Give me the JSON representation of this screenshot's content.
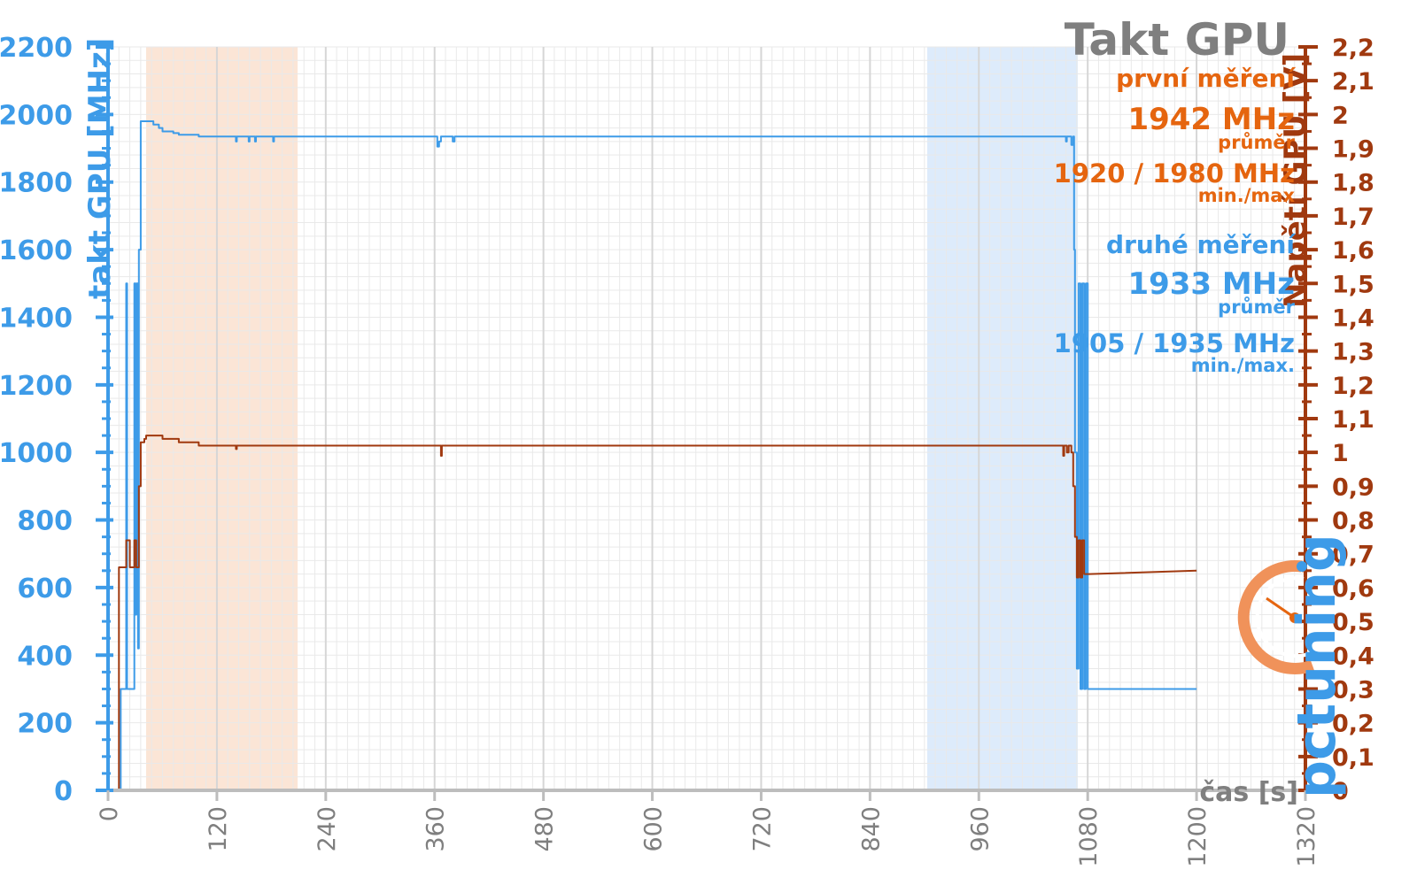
{
  "chart_data": {
    "type": "line",
    "title": "Takt GPU",
    "xlabel": "čas [s]",
    "ylabel_left": "takt GPU [MHz]",
    "ylabel_right": "Napětí GPU [V]",
    "xlim": [
      0,
      1320
    ],
    "ylim_left": [
      0,
      2200
    ],
    "ylim_right": [
      0,
      2.2
    ],
    "x_ticks": [
      "0",
      "120",
      "240",
      "360",
      "480",
      "600",
      "720",
      "840",
      "960",
      "1080",
      "1200",
      "1320"
    ],
    "y_left_ticks": [
      "0",
      "200",
      "400",
      "600",
      "800",
      "1000",
      "1200",
      "1400",
      "1600",
      "1800",
      "2000",
      "2200"
    ],
    "y_right_ticks": [
      "0",
      "0,1",
      "0,2",
      "0,3",
      "0,4",
      "0,5",
      "0,6",
      "0,7",
      "0,8",
      "0,9",
      "1",
      "1,1",
      "1,2",
      "1,3",
      "1,4",
      "1,5",
      "1,6",
      "1,7",
      "1,8",
      "1,9",
      "2",
      "2,1",
      "2,2"
    ],
    "grid": true,
    "highlight_ranges": [
      {
        "x": [
          42,
          209
        ],
        "color": "#fbe5d6"
      },
      {
        "x": [
          903,
          1069
        ],
        "color": "#ddebfb"
      }
    ],
    "series": [
      {
        "axis": "left",
        "color": "#3d9be8",
        "x": [
          2,
          14,
          14,
          20,
          20,
          21,
          21,
          24,
          24,
          29,
          29,
          30,
          30,
          31,
          31,
          33,
          33,
          34,
          34,
          36,
          36,
          38,
          38,
          50,
          50,
          56,
          56,
          60,
          60,
          72,
          72,
          78,
          78,
          100,
          100,
          141,
          141,
          142,
          142,
          155,
          155,
          156,
          156,
          162,
          162,
          163,
          163,
          182,
          182,
          183,
          183,
          363,
          363,
          365,
          365,
          367,
          367,
          380,
          380,
          382,
          382,
          1056,
          1056,
          1057,
          1057,
          1062,
          1062,
          1064,
          1064,
          1065,
          1065,
          1066,
          1066,
          1068,
          1068,
          1070,
          1070,
          1072,
          1072,
          1074,
          1074,
          1076,
          1076,
          1078,
          1078,
          1080,
          1080,
          1082,
          1082,
          1200
        ],
        "y": [
          0,
          0,
          300,
          300,
          1500,
          1500,
          300,
          300,
          300,
          300,
          1500,
          1500,
          520,
          520,
          1500,
          1500,
          420,
          420,
          1600,
          1600,
          1980,
          1980,
          1980,
          1980,
          1970,
          1970,
          1960,
          1960,
          1950,
          1950,
          1945,
          1945,
          1940,
          1940,
          1935,
          1935,
          1920,
          1920,
          1935,
          1935,
          1920,
          1920,
          1935,
          1935,
          1920,
          1920,
          1935,
          1935,
          1920,
          1920,
          1935,
          1935,
          1905,
          1905,
          1920,
          1920,
          1935,
          1935,
          1920,
          1920,
          1935,
          1935,
          1920,
          1920,
          1935,
          1935,
          1910,
          1910,
          1935,
          1935,
          1600,
          1600,
          1000,
          1000,
          360,
          360,
          1500,
          1500,
          300,
          300,
          1500,
          1500,
          300,
          300,
          1500,
          1500,
          300,
          300,
          300,
          300
        ]
      },
      {
        "axis": "right",
        "color": "#a0390f",
        "x": [
          0,
          12,
          12,
          14,
          14,
          20,
          20,
          24,
          24,
          29,
          29,
          31,
          31,
          34,
          34,
          36,
          36,
          40,
          40,
          42,
          42,
          60,
          60,
          78,
          78,
          100,
          100,
          141,
          141,
          142,
          142,
          367,
          367,
          368,
          368,
          1053,
          1053,
          1054,
          1054,
          1057,
          1057,
          1059,
          1059,
          1062,
          1062,
          1064,
          1064,
          1066,
          1066,
          1068,
          1068,
          1070,
          1070,
          1072,
          1072,
          1074,
          1074,
          1076,
          1076,
          1078,
          1078,
          1080,
          1080,
          1082,
          1082,
          1200
        ],
        "y": [
          0,
          0,
          0.66,
          0.66,
          0.66,
          0.66,
          0.74,
          0.74,
          0.66,
          0.66,
          0.74,
          0.74,
          0.66,
          0.66,
          0.9,
          0.9,
          1.03,
          1.03,
          1.04,
          1.04,
          1.05,
          1.05,
          1.04,
          1.04,
          1.03,
          1.03,
          1.02,
          1.02,
          1.01,
          1.01,
          1.02,
          1.02,
          0.99,
          0.99,
          1.02,
          1.02,
          0.99,
          0.99,
          1.02,
          1.02,
          1.0,
          1.0,
          1.02,
          1.02,
          1.0,
          1.0,
          0.9,
          0.9,
          0.75,
          0.75,
          0.63,
          0.63,
          0.74,
          0.74,
          0.63,
          0.63,
          0.74,
          0.74,
          0.64,
          0.64,
          0.64,
          0.64,
          0.64,
          0.64,
          0.64,
          0.65
        ]
      }
    ]
  },
  "annotations": {
    "first_label": "první měření",
    "first_avg": "1942 MHz",
    "first_avg_sub": "průměr",
    "first_minmax": "1920 / 1980 MHz",
    "first_minmax_sub": "min./max",
    "second_label": "druhé měření",
    "second_avg": "1933 MHz",
    "second_avg_sub": "průměr",
    "second_minmax": "1905 / 1935 MHz",
    "second_minmax_sub": "min./max."
  },
  "logo": {
    "text": "pctuning"
  },
  "colors": {
    "left_axis": "#3d9be8",
    "right_axis": "#a0390f",
    "title": "#7f7f7f",
    "first_run": "#e5650f",
    "second_run": "#3d9be8",
    "grid": "#e7e7e7"
  }
}
